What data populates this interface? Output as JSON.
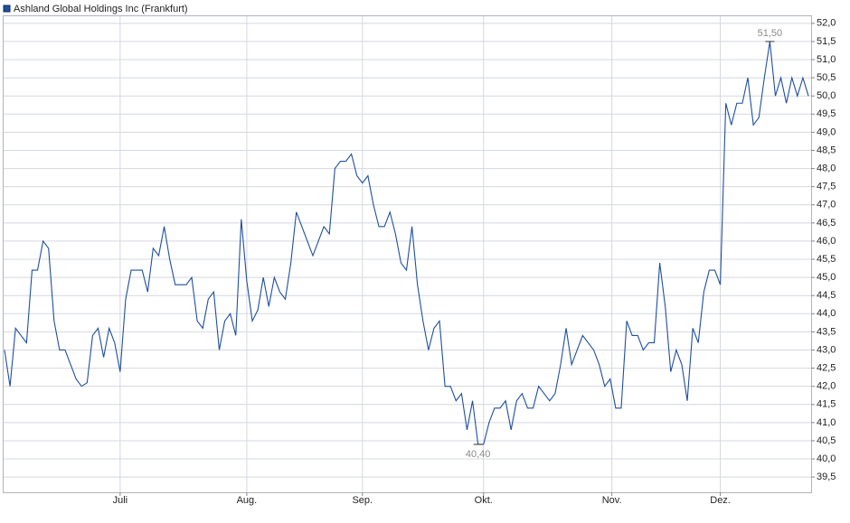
{
  "chart_data": {
    "type": "line",
    "series": [
      {
        "name": "Ashland Global Holdings Inc (Frankfurt)",
        "color": "#1f4f9f",
        "values": [
          43.0,
          42.0,
          43.6,
          43.4,
          43.2,
          45.2,
          45.2,
          46.0,
          45.8,
          43.8,
          43.0,
          43.0,
          42.6,
          42.2,
          42.0,
          42.1,
          43.4,
          43.6,
          42.8,
          43.6,
          43.2,
          42.4,
          44.4,
          45.2,
          45.2,
          45.2,
          44.6,
          45.8,
          45.6,
          46.4,
          45.5,
          44.8,
          44.8,
          44.8,
          45.0,
          43.8,
          43.6,
          44.4,
          44.6,
          43.0,
          43.8,
          44.0,
          43.4,
          46.6,
          44.9,
          43.8,
          44.1,
          45.0,
          44.2,
          45.0,
          44.6,
          44.4,
          45.4,
          46.8,
          46.4,
          46.0,
          45.6,
          46.0,
          46.4,
          46.2,
          48.0,
          48.2,
          48.2,
          48.4,
          47.8,
          47.6,
          47.8,
          47.0,
          46.4,
          46.4,
          46.8,
          46.2,
          45.4,
          45.2,
          46.4,
          44.8,
          43.8,
          43.0,
          43.6,
          43.8,
          42.0,
          42.0,
          41.6,
          41.8,
          40.8,
          41.6,
          40.4,
          40.4,
          41.0,
          41.4,
          41.4,
          41.6,
          40.8,
          41.6,
          41.8,
          41.4,
          41.4,
          42.0,
          41.8,
          41.6,
          41.8,
          42.6,
          43.6,
          42.6,
          43.0,
          43.4,
          43.2,
          43.0,
          42.6,
          42.0,
          42.2,
          41.4,
          41.4,
          43.8,
          43.4,
          43.4,
          43.0,
          43.2,
          43.2,
          45.4,
          44.2,
          42.4,
          43.0,
          42.6,
          41.6,
          43.6,
          43.2,
          44.6,
          45.2,
          45.2,
          44.8,
          49.8,
          49.2,
          49.8,
          49.8,
          50.5,
          49.2,
          49.4,
          50.5,
          51.5,
          50.0,
          50.5,
          49.8,
          50.5,
          50.0,
          50.5,
          50.0
        ]
      }
    ],
    "xlim": [
      0,
      146
    ],
    "xticks": [
      {
        "value": 21,
        "label": "Juli"
      },
      {
        "value": 44,
        "label": "Aug."
      },
      {
        "value": 65,
        "label": "Sep."
      },
      {
        "value": 87,
        "label": "Okt."
      },
      {
        "value": 110.3,
        "label": "Nov."
      },
      {
        "value": 130,
        "label": "Dez."
      }
    ],
    "ylim": [
      39.08,
      52.22
    ],
    "yticks": [
      {
        "value": 39.5,
        "label": "39,5"
      },
      {
        "value": 40,
        "label": "40,0"
      },
      {
        "value": 40.5,
        "label": "40,5"
      },
      {
        "value": 41,
        "label": "41,0"
      },
      {
        "value": 41.5,
        "label": "41,5"
      },
      {
        "value": 42,
        "label": "42,0"
      },
      {
        "value": 42.5,
        "label": "42,5"
      },
      {
        "value": 43,
        "label": "43,0"
      },
      {
        "value": 43.5,
        "label": "43,5"
      },
      {
        "value": 44,
        "label": "44,0"
      },
      {
        "value": 44.5,
        "label": "44,5"
      },
      {
        "value": 45,
        "label": "45,0"
      },
      {
        "value": 45.5,
        "label": "45,5"
      },
      {
        "value": 46,
        "label": "46,0"
      },
      {
        "value": 46.5,
        "label": "46,5"
      },
      {
        "value": 47,
        "label": "47,0"
      },
      {
        "value": 47.5,
        "label": "47,5"
      },
      {
        "value": 48,
        "label": "48,0"
      },
      {
        "value": 48.5,
        "label": "48,5"
      },
      {
        "value": 49,
        "label": "49,0"
      },
      {
        "value": 49.5,
        "label": "49,5"
      },
      {
        "value": 50,
        "label": "50,0"
      },
      {
        "value": 50.5,
        "label": "50,5"
      },
      {
        "value": 51,
        "label": "51,0"
      },
      {
        "value": 51.5,
        "label": "51,5"
      },
      {
        "value": 52,
        "label": "52,0"
      }
    ],
    "grid": true,
    "annotations": [
      {
        "label": "51,50",
        "value": 51.5,
        "x": 139
      },
      {
        "label": "40,40",
        "value": 40.4,
        "x": 86
      }
    ]
  }
}
